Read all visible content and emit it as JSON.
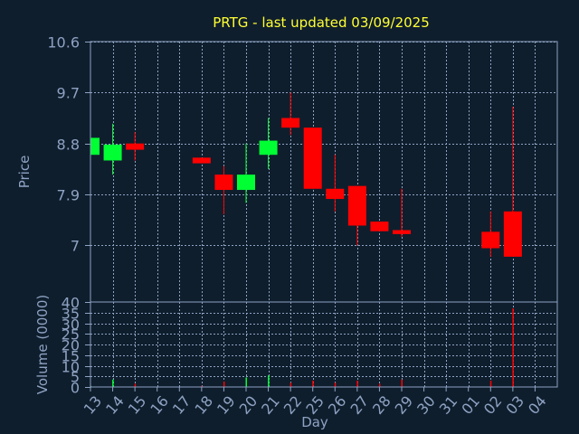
{
  "colors": {
    "background": "#0f1e2d",
    "frame": "#8ea3c3",
    "grid": "#8ea3c3",
    "text": "#8ea3c3",
    "title": "#ffff33",
    "up": "#00ff33",
    "down": "#ff0000"
  },
  "chart_data": [
    {
      "type": "candlestick",
      "title": "PRTG - last updated 03/09/2025",
      "ylabel": "Price",
      "ylim": [
        6.0,
        10.6
      ],
      "yticks": [
        "10.6",
        "9.7",
        "8.8",
        "7.9",
        "7"
      ],
      "grid": true,
      "up_color": "#00ff33",
      "down_color": "#ff0000",
      "candles": [
        {
          "date": "13",
          "open": 8.6,
          "close": 8.9,
          "high": 8.9,
          "low": 8.6
        },
        {
          "date": "14",
          "open": 8.5,
          "close": 8.78,
          "high": 9.15,
          "low": 8.25
        },
        {
          "date": "15",
          "open": 8.8,
          "close": 8.69,
          "high": 9.0,
          "low": 8.5
        },
        {
          "date": "18",
          "open": 8.55,
          "close": 8.45,
          "high": 8.55,
          "low": 8.45
        },
        {
          "date": "19",
          "open": 8.25,
          "close": 7.98,
          "high": 8.4,
          "low": 7.55
        },
        {
          "date": "20",
          "open": 7.98,
          "close": 8.25,
          "high": 8.8,
          "low": 7.75
        },
        {
          "date": "21",
          "open": 8.6,
          "close": 8.85,
          "high": 9.25,
          "low": 8.35
        },
        {
          "date": "22",
          "open": 9.25,
          "close": 9.08,
          "high": 9.7,
          "low": 8.95
        },
        {
          "date": "25",
          "open": 9.08,
          "close": 8.0,
          "high": 9.08,
          "low": 8.0
        },
        {
          "date": "26",
          "open": 8.0,
          "close": 7.82,
          "high": 8.6,
          "low": 7.6
        },
        {
          "date": "27",
          "open": 8.05,
          "close": 7.35,
          "high": 8.05,
          "low": 7.0
        },
        {
          "date": "28",
          "open": 7.42,
          "close": 7.25,
          "high": 7.42,
          "low": 7.25
        },
        {
          "date": "29",
          "open": 7.27,
          "close": 7.2,
          "high": 8.0,
          "low": 7.15
        },
        {
          "date": "02",
          "open": 7.24,
          "close": 6.95,
          "high": 7.6,
          "low": 6.8
        },
        {
          "date": "03",
          "open": 7.6,
          "close": 6.8,
          "high": 9.45,
          "low": 6.8
        }
      ]
    },
    {
      "type": "bar",
      "ylabel": "Volume (0000)",
      "xlabel": "Day",
      "ylim": [
        0,
        40
      ],
      "yticks": [
        "40",
        "35",
        "30",
        "25",
        "20",
        "15",
        "10",
        "5",
        "0"
      ],
      "categories": [
        "13",
        "14",
        "15",
        "18",
        "19",
        "20",
        "21",
        "22",
        "25",
        "26",
        "27",
        "28",
        "29",
        "02",
        "03"
      ],
      "values": [
        0.5,
        3.5,
        1.5,
        0.5,
        2.5,
        4.5,
        5.5,
        2.0,
        3.0,
        2.0,
        3.0,
        1.5,
        3.5,
        3.0,
        37.0
      ],
      "colors": [
        "up",
        "up",
        "down",
        "down",
        "down",
        "up",
        "up",
        "down",
        "down",
        "down",
        "down",
        "down",
        "down",
        "down",
        "down"
      ]
    }
  ],
  "x_axis": {
    "tick_labels": [
      "13",
      "14",
      "15",
      "16",
      "17",
      "18",
      "19",
      "20",
      "21",
      "22",
      "25",
      "26",
      "27",
      "28",
      "29",
      "30",
      "31",
      "01",
      "02",
      "03",
      "04"
    ]
  }
}
